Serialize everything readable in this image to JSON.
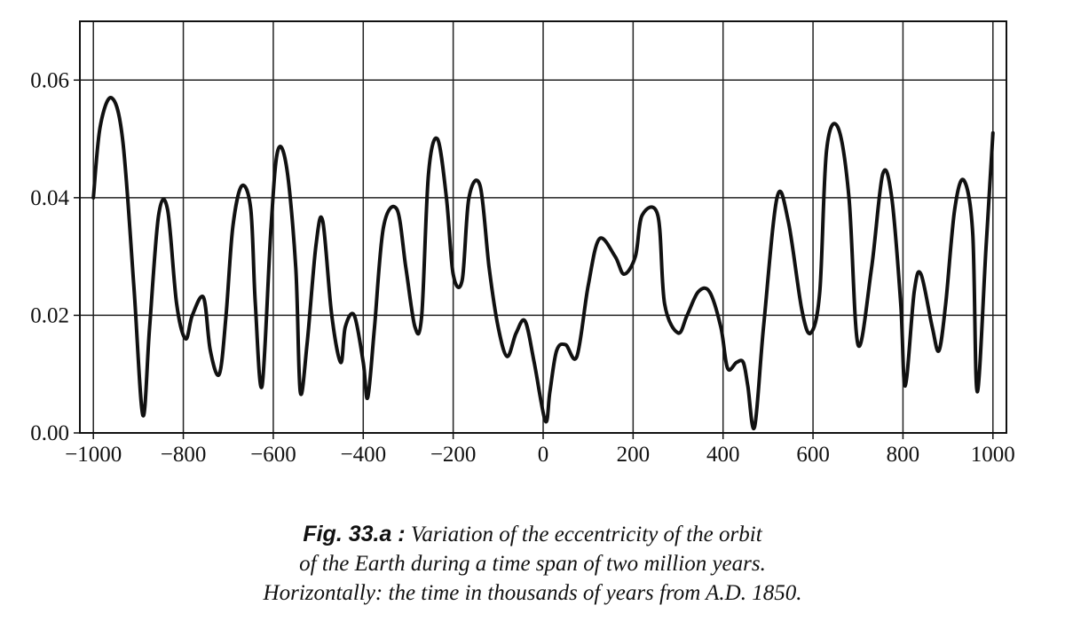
{
  "chart_data": {
    "type": "line",
    "title": "",
    "xlabel": "",
    "ylabel": "",
    "xlim": [
      -1030,
      1030
    ],
    "ylim": [
      0,
      0.07
    ],
    "x_ticks": [
      -1000,
      -800,
      -600,
      -400,
      -200,
      0,
      200,
      400,
      600,
      800,
      1000
    ],
    "x_tick_labels": [
      "−1000",
      "−800",
      "−600",
      "−400",
      "−200",
      "0",
      "200",
      "400",
      "600",
      "800",
      "1000"
    ],
    "y_ticks": [
      0,
      0.02,
      0.04,
      0.06
    ],
    "y_tick_labels": [
      "0.00",
      "0.02",
      "0.04",
      "0.06"
    ],
    "grid": true,
    "legend": "none",
    "line_color": "#111111",
    "series": [
      {
        "x": [
          -1000,
          -985,
          -960,
          -935,
          -910,
          -890,
          -875,
          -855,
          -835,
          -815,
          -795,
          -780,
          -755,
          -740,
          -720,
          -705,
          -690,
          -670,
          -650,
          -640,
          -625,
          -605,
          -590,
          -570,
          -550,
          -540,
          -525,
          -505,
          -490,
          -470,
          -450,
          -440,
          -420,
          -400,
          -390,
          -375,
          -355,
          -325,
          -305,
          -285,
          -270,
          -255,
          -235,
          -215,
          -200,
          -180,
          -165,
          -140,
          -120,
          -100,
          -80,
          -60,
          -40,
          -20,
          5,
          15,
          30,
          50,
          75,
          100,
          125,
          160,
          180,
          205,
          220,
          255,
          270,
          300,
          320,
          345,
          370,
          395,
          410,
          430,
          445,
          455,
          470,
          490,
          520,
          545,
          575,
          595,
          615,
          630,
          655,
          680,
          700,
          730,
          755,
          775,
          795,
          805,
          825,
          840,
          865,
          880,
          895,
          915,
          935,
          955,
          965,
          985,
          1000
        ],
        "y": [
          0.04,
          0.052,
          0.057,
          0.05,
          0.025,
          0.003,
          0.018,
          0.037,
          0.038,
          0.022,
          0.016,
          0.02,
          0.023,
          0.014,
          0.01,
          0.02,
          0.035,
          0.042,
          0.038,
          0.022,
          0.008,
          0.035,
          0.048,
          0.045,
          0.028,
          0.007,
          0.015,
          0.032,
          0.036,
          0.02,
          0.012,
          0.018,
          0.02,
          0.012,
          0.006,
          0.018,
          0.035,
          0.038,
          0.028,
          0.018,
          0.02,
          0.044,
          0.05,
          0.04,
          0.027,
          0.026,
          0.04,
          0.042,
          0.028,
          0.018,
          0.013,
          0.017,
          0.019,
          0.012,
          0.002,
          0.007,
          0.014,
          0.015,
          0.013,
          0.025,
          0.033,
          0.03,
          0.027,
          0.03,
          0.037,
          0.037,
          0.022,
          0.017,
          0.02,
          0.024,
          0.024,
          0.018,
          0.011,
          0.012,
          0.012,
          0.008,
          0.001,
          0.018,
          0.04,
          0.036,
          0.021,
          0.017,
          0.024,
          0.048,
          0.052,
          0.04,
          0.015,
          0.028,
          0.044,
          0.04,
          0.022,
          0.008,
          0.024,
          0.027,
          0.018,
          0.014,
          0.022,
          0.038,
          0.043,
          0.034,
          0.007,
          0.032,
          0.051
        ]
      }
    ]
  },
  "caption": {
    "fig_label": "Fig. 33.a :",
    "line1": "Variation of the eccentricity of the orbit",
    "line2": "of the Earth during a time span of two million years.",
    "line3": "Horizontally: the time in thousands of years from A.D. 1850."
  }
}
